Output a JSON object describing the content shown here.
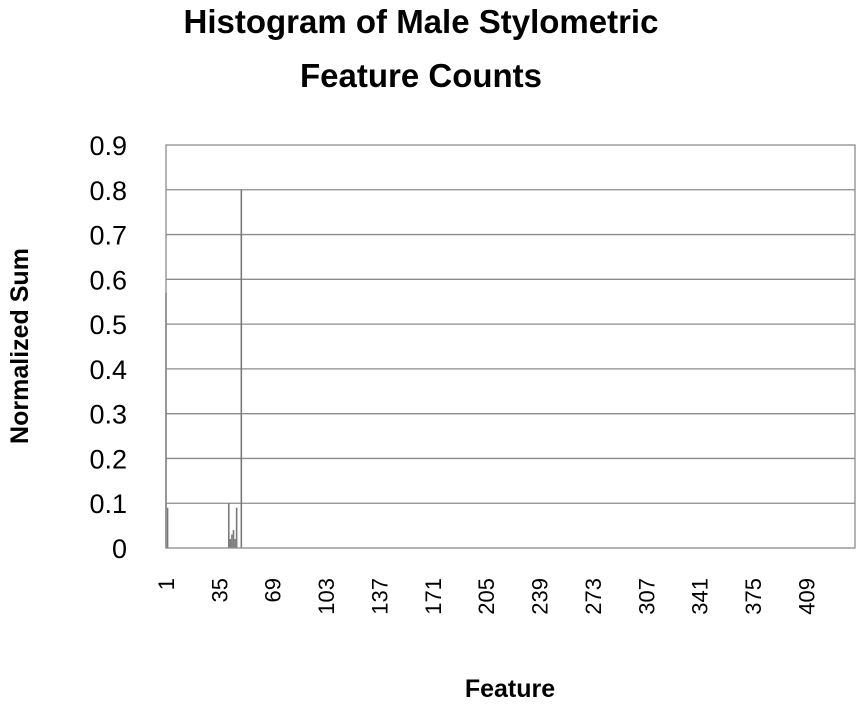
{
  "chart_data": {
    "type": "bar",
    "title_lines": [
      "Histogram of Male Stylometric",
      "Feature Counts"
    ],
    "xlabel": "Feature",
    "ylabel": "Normalized Sum",
    "ylim": [
      0,
      0.9
    ],
    "yticks": [
      "0",
      "0.1",
      "0.2",
      "0.3",
      "0.4",
      "0.5",
      "0.6",
      "0.7",
      "0.8",
      "0.9"
    ],
    "xlim": [
      1,
      440
    ],
    "xticks": [
      "1",
      "35",
      "69",
      "103",
      "137",
      "171",
      "205",
      "239",
      "273",
      "307",
      "341",
      "375",
      "409"
    ],
    "grid": true,
    "bars": [
      {
        "x": 1,
        "y": 0.57
      },
      {
        "x": 2,
        "y": 0.09
      },
      {
        "x": 41,
        "y": 0.1
      },
      {
        "x": 42,
        "y": 0.02
      },
      {
        "x": 43,
        "y": 0.03
      },
      {
        "x": 44,
        "y": 0.04
      },
      {
        "x": 45,
        "y": 0.02
      },
      {
        "x": 46,
        "y": 0.09
      },
      {
        "x": 49,
        "y": 0.8
      }
    ]
  }
}
